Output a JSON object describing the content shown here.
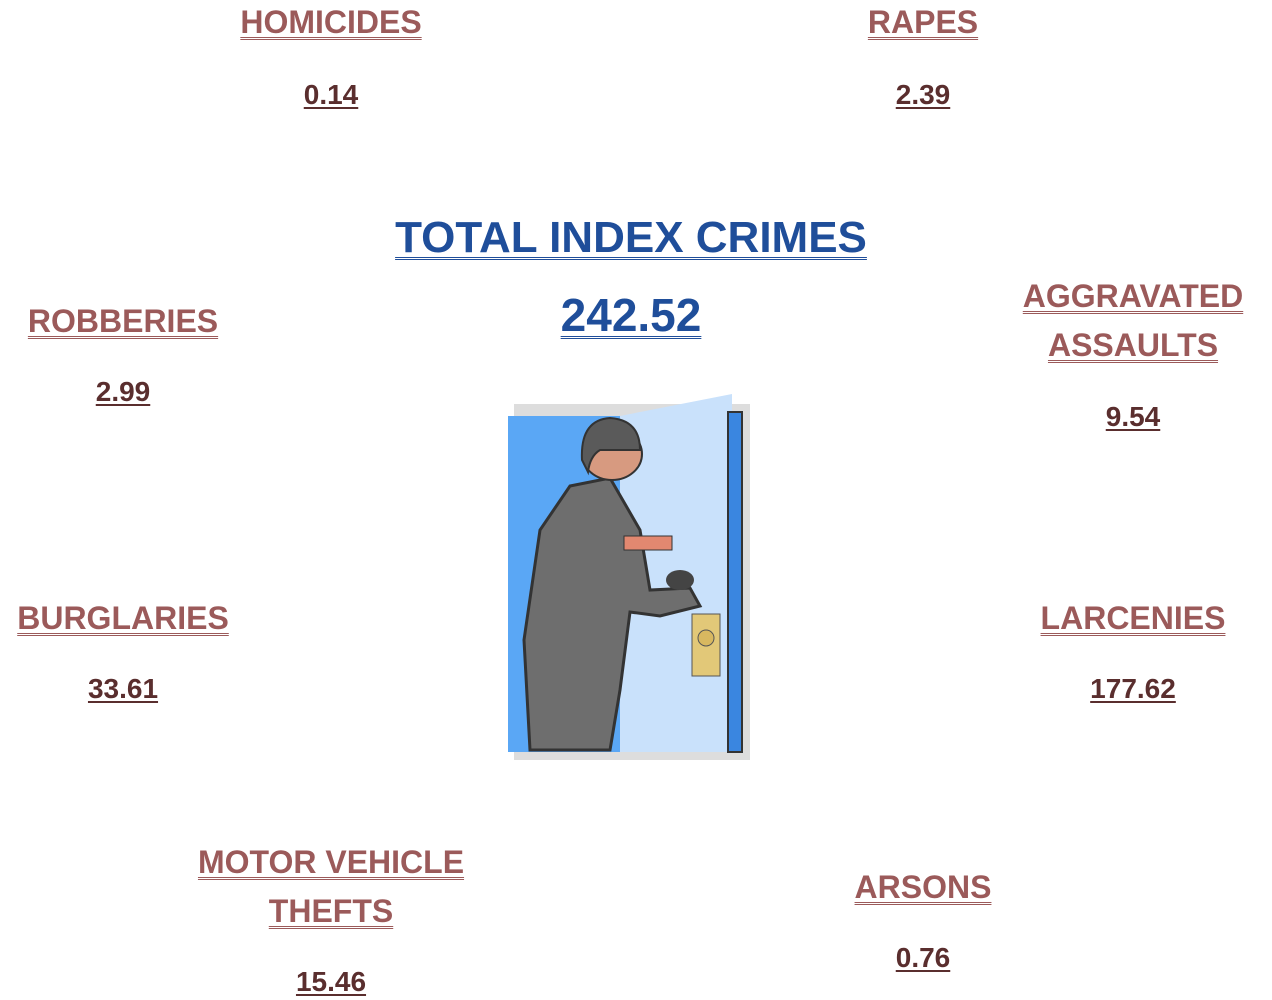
{
  "title": "TOTAL INDEX CRIMES",
  "total": "242.52",
  "items": [
    {
      "label": "HOMICIDES",
      "value": "0.14"
    },
    {
      "label": "RAPES",
      "value": "2.39"
    },
    {
      "label": "ROBBERIES",
      "value": "2.99"
    },
    {
      "label": "AGGRAVATED ASSAULTS",
      "value": "9.54"
    },
    {
      "label": "BURGLARIES",
      "value": "33.61"
    },
    {
      "label": "LARCENIES",
      "value": "177.62"
    },
    {
      "label": "MOTOR VEHICLE THEFTS",
      "value": "15.46"
    },
    {
      "label": "ARSONS",
      "value": "0.76"
    }
  ]
}
